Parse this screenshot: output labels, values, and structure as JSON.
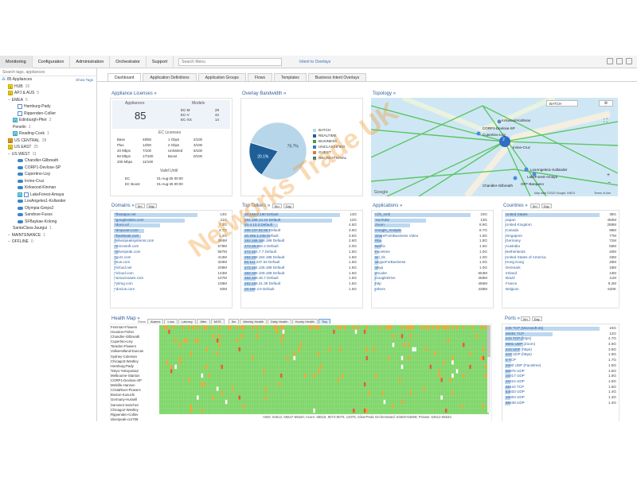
{
  "nav": {
    "items": [
      "Monitoring",
      "Configuration",
      "Administration",
      "Orchestrator",
      "Support"
    ],
    "search_placeholder": "Search Menu",
    "overlay_link": "Intent to Overlays"
  },
  "sidebar": {
    "search_placeholder": "Search tags, appliances",
    "show_tags": "Show Tags",
    "root": "85 Appliances",
    "items": [
      {
        "label": "HUB",
        "count": "15",
        "indent": 1,
        "badge": "1",
        "badge_color": "y"
      },
      {
        "label": "APJ & AUS",
        "count": "5",
        "indent": 1,
        "badge": "1",
        "badge_color": "y"
      },
      {
        "label": "EMEA",
        "count": "5",
        "indent": 1,
        "badge": "",
        "badge_color": ""
      },
      {
        "label": "Hamburg-Pady",
        "count": "",
        "indent": 3,
        "badge": "",
        "badge_color": "",
        "node": true
      },
      {
        "label": "Rippenden-Collier",
        "count": "",
        "indent": 3,
        "badge": "",
        "badge_color": "",
        "node": true
      },
      {
        "label": "Edinburgh-Pfeir",
        "count": "2",
        "indent": 2,
        "badge": "1",
        "badge_color": "c"
      },
      {
        "label": "Penelin",
        "count": "1",
        "indent": 2,
        "badge": "",
        "badge_color": ""
      },
      {
        "label": "Reading-Cook",
        "count": "1",
        "indent": 2,
        "badge": "1",
        "badge_color": "c"
      },
      {
        "label": "US CENTRAL",
        "count": "28",
        "indent": 1,
        "badge": "5",
        "badge_color": "o"
      },
      {
        "label": "US EAST",
        "count": "25",
        "indent": 1,
        "badge": "1",
        "badge_color": "y"
      },
      {
        "label": "US WEST",
        "count": "11",
        "indent": 1,
        "badge": "",
        "badge_color": ""
      },
      {
        "label": "Chandler-Gilbreath",
        "count": "",
        "indent": 3,
        "badge": "",
        "badge_color": "",
        "cloud": true
      },
      {
        "label": "CORP1-Devlose-SP",
        "count": "",
        "indent": 3,
        "badge": "",
        "badge_color": "",
        "cloud": true
      },
      {
        "label": "Cupertino-Lisy",
        "count": "",
        "indent": 3,
        "badge": "",
        "badge_color": "",
        "cloud": true
      },
      {
        "label": "Irvine-Cruz",
        "count": "",
        "indent": 3,
        "badge": "",
        "badge_color": "",
        "cloud": true
      },
      {
        "label": "Kirkwood-Kinman",
        "count": "",
        "indent": 3,
        "badge": "",
        "badge_color": "",
        "cloud": true
      },
      {
        "label": "LakeForest-Amaya",
        "count": "",
        "indent": 3,
        "badge": "1",
        "badge_color": "c",
        "node": true
      },
      {
        "label": "LosAngeles1-Kollander",
        "count": "",
        "indent": 3,
        "badge": "",
        "badge_color": "",
        "cloud": true
      },
      {
        "label": "Olympia-Greps2",
        "count": "",
        "indent": 3,
        "badge": "",
        "badge_color": "",
        "cloud": true
      },
      {
        "label": "Sandose-Fusss",
        "count": "",
        "indent": 3,
        "badge": "",
        "badge_color": "",
        "cloud": true
      },
      {
        "label": "SFBaykae-Kolong",
        "count": "",
        "indent": 3,
        "badge": "",
        "badge_color": "",
        "cloud": true
      },
      {
        "label": "SantaClara-Jaurgui",
        "count": "1",
        "indent": 2,
        "badge": "",
        "badge_color": ""
      },
      {
        "label": "MAINTENANCE",
        "count": "1",
        "indent": 1,
        "badge": "",
        "badge_color": ""
      },
      {
        "label": "OFFLINE",
        "count": "0",
        "indent": 1,
        "badge": "",
        "badge_color": ""
      }
    ]
  },
  "tabs": [
    "Dashboard",
    "Application Definitions",
    "Application Groups",
    "Flows",
    "Templates",
    "Business Intent Overlays"
  ],
  "appliance_licenses": {
    "title": "Appliance Licenses",
    "appliances_label": "Appliances",
    "appliances_count": "85",
    "models_label": "Models",
    "models": [
      [
        "EC-M",
        "29"
      ],
      [
        "EC-V",
        "42"
      ],
      [
        "EC-XS",
        "14"
      ]
    ],
    "ec_licenses_label": "EC Licenses",
    "ec_rows": [
      [
        "Base",
        "48/50",
        "1 Gbps",
        "2/100"
      ],
      [
        "Plus",
        "12/50",
        "2 Gbps",
        "3/100"
      ],
      [
        "20 Mbps",
        "7/100",
        "Unlimited",
        "5/100"
      ],
      [
        "50 Mbps",
        "17/100",
        "Boost",
        "0/100"
      ],
      [
        "200 Mbps",
        "11/100",
        "",
        ""
      ]
    ],
    "valid_until_label": "Valid Until",
    "valid": [
      [
        "EC",
        "01-Aug-25 00:00"
      ],
      [
        "EC Boost",
        "01-Aug-25 00:00"
      ]
    ]
  },
  "overlay_bandwidth": {
    "title": "Overlay Bandwidth",
    "legend": [
      {
        "name": "BATCH",
        "color": "#b8d6ea"
      },
      {
        "name": "REALTIME",
        "color": "#1f5f98"
      },
      {
        "name": "BUSINESS",
        "color": "#4a9b3c"
      },
      {
        "name": "UNCLASSIFIED",
        "color": "#3b76b8"
      },
      {
        "name": "GUEST",
        "color": "#e57a2c"
      },
      {
        "name": "RECREATIONAL",
        "color": "#2a7f86"
      }
    ],
    "slices": [
      {
        "name": "BATCH",
        "value": 79.7,
        "label": "79.7%"
      },
      {
        "name": "REALTIME",
        "value": 20.1,
        "label": "20.1%"
      },
      {
        "name": "BUSINESS",
        "value": 0.2,
        "label": ""
      }
    ]
  },
  "topology": {
    "title": "Topology",
    "dropdown": "BATCH",
    "cluster_count": "2",
    "labels": [
      "Kirkwood-Kollman",
      "CORP1-Devlose-SP",
      "Cupertino-Lisy",
      "Irvine-Cruz",
      "LosAngeles1-Kollander",
      "LakeForest-Amaya",
      "Chandler-Gilbreath",
      "OFF-Barquero"
    ],
    "attribution": "Map data ©2020 Google, INEGI",
    "terms": "Terms of Use",
    "google": "Google"
  },
  "domains": {
    "title": "Domains",
    "buttons": [
      "5m",
      "Day"
    ],
    "max": 15,
    "rows": [
      [
        "*fbstatpix.net",
        "13G"
      ],
      [
        "*googlevideo.com",
        "11G"
      ],
      [
        "*docs.cd",
        "7.2G"
      ],
      [
        "*dropcam.com",
        "4.7G"
      ],
      [
        "*facebook.com",
        "4.2G"
      ],
      [
        "*silverpeaksystems.com",
        "394M"
      ],
      [
        "*microsoft.com",
        "579M"
      ],
      [
        "*silverpeak.com",
        "587M"
      ],
      [
        "*gvt1.com",
        "413M"
      ],
      [
        "*nus.com",
        "329M"
      ],
      [
        "*icloud.net",
        "208M"
      ],
      [
        "*icloud.com",
        "143M"
      ],
      [
        "*amazonaws.com",
        "107M"
      ],
      [
        "*ytimg.com",
        "108M"
      ],
      [
        "*docius.com",
        "92M"
      ]
    ]
  },
  "top_talkers": {
    "title": "Top Talkers",
    "buttons": [
      "5m",
      "Day"
    ],
    "max": 13,
    "rows": [
      [
        "10.168.0.190 Default",
        "13G"
      ],
      [
        "192.168.14.24 Default",
        "12G"
      ],
      [
        "10.4.13.3 Default",
        "4.6G"
      ],
      [
        "185.137.82.58 Default",
        "3.6G"
      ],
      [
        "10.255.1.245 Default",
        "3.6G"
      ],
      [
        "192.168.188.196 Default",
        "2.6G"
      ],
      [
        "172.28.250.2 Default",
        "2.0G"
      ],
      [
        "172.194.7.7 Default",
        "1.6G"
      ],
      [
        "192.168.184.188 Default",
        "1.6G"
      ],
      [
        "83.111.237.53 Default",
        "1.6G"
      ],
      [
        "172.194.135.189 Default",
        "1.6G"
      ],
      [
        "192.168.109.189 Default",
        "1.6G"
      ],
      [
        "192.168.46.7 Default",
        "1.6G"
      ],
      [
        "192.168.41.38 Default",
        "1.6G"
      ],
      [
        "10.180.4.6 Default",
        "1.5G"
      ]
    ]
  },
  "applications": {
    "title": "Applications",
    "max": 24,
    "rows": [
      [
        "Cifs_smb",
        "24G"
      ],
      [
        "YouTube",
        "13G"
      ],
      [
        "Zoom",
        "8.9G"
      ],
      [
        "Google_Analytic",
        "6.7G"
      ],
      [
        "SharePointBusiness Video",
        "1.9G"
      ],
      [
        "Rbo",
        "1.8G"
      ],
      [
        "Netflix",
        "1.6G"
      ],
      [
        "Facetime",
        "1.0G"
      ],
      [
        "ssl_tls",
        "1.0G"
      ],
      [
        "SkypeForBusiness",
        "1.0G"
      ],
      [
        "Skyp",
        "1.0G"
      ],
      [
        "Zscaler",
        "553M"
      ],
      [
        "GoogleDrive",
        "468M"
      ],
      [
        "http",
        "456M"
      ],
      [
        "others",
        "438M"
      ]
    ]
  },
  "countries": {
    "title": "Countries",
    "buttons": [
      "5m",
      "Day"
    ],
    "max": 38,
    "rows": [
      [
        "United States",
        "38G"
      ],
      [
        "Japan",
        "450M"
      ],
      [
        "United Kingdom",
        "288M"
      ],
      [
        "Canada",
        "98M"
      ],
      [
        "Singapore",
        "77M"
      ],
      [
        "Germany",
        "71M"
      ],
      [
        "Australia",
        "56M"
      ],
      [
        "Netherlands",
        "40M"
      ],
      [
        "United States of America",
        "33M"
      ],
      [
        "Hong Kong",
        "29M"
      ],
      [
        "Denmark",
        "18M"
      ],
      [
        "Ireland",
        "13M"
      ],
      [
        "Brazil",
        "11M"
      ],
      [
        "France",
        "9.2M"
      ],
      [
        "Belgium",
        "640K"
      ]
    ]
  },
  "health_map": {
    "title": "Health Map",
    "show_label": "Show",
    "filters": [
      "Alarms",
      "Loss",
      "Latency",
      "Jitter",
      "MOS"
    ],
    "views": [
      "5m",
      "Weekly Health",
      "Daily Health",
      "Hourly Health",
      "Tiny"
    ],
    "appliances": [
      "Feinman-Flowers",
      "Houston-Fisher",
      "Chandler-Gilbreath",
      "Cupertino-Lisy",
      "Taradon-Flowers",
      "VolkaHolland-Duncan",
      "Sydney-Coleman",
      "Chicago3-Westley",
      "Hamburg-Pady",
      "Tokyo-Yokoyama2",
      "Melbourne-Stanton",
      "CORP1-Devlose-SP",
      "Melville-Hanson",
      "CristaRiver-Flowers",
      "Boston-Kusuchi",
      "Germany-Hussell",
      "Sanose2-Sanchez",
      "Chicago2-Westley",
      "Rippenden-Collier",
      "silverpeak-ccs708"
    ],
    "footer": "AWS: 64512, 65547-65520; Azure: 65515, 8074-8075, 12076; SilverPeak Orchestrated: 64600-64599; Private: 64512-65534"
  },
  "ports": {
    "title": "Ports",
    "buttons": [
      "5m",
      "Day"
    ],
    "max": 24,
    "rows": [
      [
        "445 TCP (Microsoft-ds)",
        "24G"
      ],
      [
        "65081 TCP",
        "12G"
      ],
      [
        "443 TCP (https)",
        "4.7G"
      ],
      [
        "8801 UDP (Zoom)",
        "4.6G"
      ],
      [
        "443 UDP (https)",
        "3.9G"
      ],
      [
        "443 UDP (https)",
        "1.9G"
      ],
      [
        "0 TCP",
        "1.7G"
      ],
      [
        "3480 UDP (Facetime)",
        "1.5G"
      ],
      [
        "50875 UDP",
        "1.5G"
      ],
      [
        "10017 UDP",
        "1.5G"
      ],
      [
        "10424 UDP",
        "1.5G"
      ],
      [
        "48124 TCP",
        "1.5G"
      ],
      [
        "53033 UDP",
        "1.4G"
      ],
      [
        "10004 UDP",
        "1.4G"
      ],
      [
        "58438 UDP",
        "1.4G"
      ]
    ]
  },
  "watermark": "Networks Trade UK"
}
